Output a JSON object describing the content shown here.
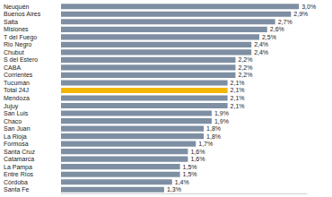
{
  "chart_data": {
    "type": "bar",
    "orientation": "horizontal",
    "categories": [
      "Neuquén",
      "Buenos Aires",
      "Salta",
      "Misiones",
      "T del Fuego",
      "Rio Negro",
      "Chubut",
      "S del Estero",
      "CABA",
      "Corrientes",
      "Tucumán",
      "Total 24J",
      "Mendoza",
      "Jujuy",
      "San Luis",
      "Chaco",
      "San Juan",
      "La Rioja",
      "Formosa",
      "Santa Cruz",
      "Catamarca",
      "La Pampa",
      "Entre Ríos",
      "Córdoba",
      "Santa Fe"
    ],
    "values": [
      3.0,
      2.9,
      2.7,
      2.6,
      2.5,
      2.4,
      2.4,
      2.2,
      2.2,
      2.2,
      2.1,
      2.1,
      2.1,
      2.1,
      1.9,
      1.9,
      1.8,
      1.8,
      1.7,
      1.6,
      1.6,
      1.5,
      1.5,
      1.4,
      1.3
    ],
    "value_labels": [
      "3,0%",
      "2,9%",
      "2,7%",
      "2,6%",
      "2,5%",
      "2,4%",
      "2,4%",
      "2,2%",
      "2,2%",
      "2,2%",
      "2,1%",
      "2,1%",
      "2,1%",
      "2,1%",
      "1,9%",
      "1,9%",
      "1,8%",
      "1,8%",
      "1,7%",
      "1,6%",
      "1,6%",
      "1,5%",
      "1,5%",
      "1,4%",
      "1,3%"
    ],
    "colors": [
      "#7e8fa4",
      "#7e8fa4",
      "#7e8fa4",
      "#7e8fa4",
      "#7e8fa4",
      "#7e8fa4",
      "#7e8fa4",
      "#7e8fa4",
      "#7e8fa4",
      "#7e8fa4",
      "#7e8fa4",
      "#f2b705",
      "#7e8fa4",
      "#7e8fa4",
      "#7e8fa4",
      "#7e8fa4",
      "#7e8fa4",
      "#7e8fa4",
      "#7e8fa4",
      "#7e8fa4",
      "#7e8fa4",
      "#7e8fa4",
      "#7e8fa4",
      "#7e8fa4",
      "#7e8fa4"
    ],
    "xlim": [
      0,
      3.1
    ],
    "xticks": [],
    "grid": false,
    "data_labels": true,
    "tick_labels": "y"
  }
}
